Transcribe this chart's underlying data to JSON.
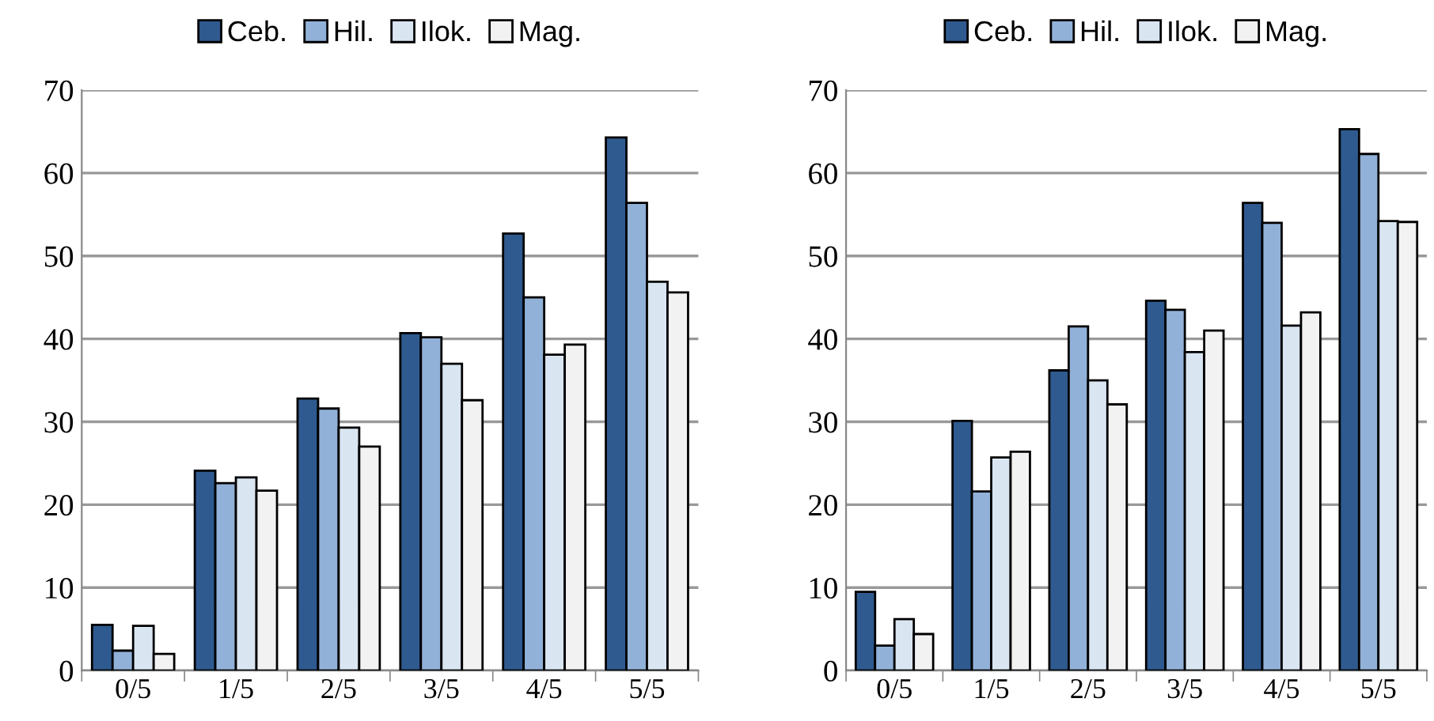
{
  "chart_data": [
    {
      "type": "bar",
      "categories": [
        "0/5",
        "1/5",
        "2/5",
        "3/5",
        "4/5",
        "5/5"
      ],
      "ylim": [
        0,
        70
      ],
      "yticks": [
        0,
        10,
        20,
        30,
        40,
        50,
        60,
        70
      ],
      "grid": "y",
      "legend": "top",
      "series": [
        {
          "name": "Ceb.",
          "color": "#2f5a8f",
          "values": [
            5.5,
            24.1,
            32.8,
            40.7,
            52.7,
            64.3
          ]
        },
        {
          "name": "Hil.",
          "color": "#92b1d8",
          "values": [
            2.4,
            22.6,
            31.6,
            40.2,
            45.0,
            56.4
          ]
        },
        {
          "name": "Ilok.",
          "color": "#dae5f2",
          "values": [
            5.4,
            23.3,
            29.3,
            37.0,
            38.1,
            46.9
          ]
        },
        {
          "name": "Mag.",
          "color": "#f2f2f2",
          "values": [
            2.0,
            21.7,
            27.0,
            32.6,
            39.3,
            45.6
          ]
        }
      ]
    },
    {
      "type": "bar",
      "categories": [
        "0/5",
        "1/5",
        "2/5",
        "3/5",
        "4/5",
        "5/5"
      ],
      "ylim": [
        0,
        70
      ],
      "yticks": [
        0,
        10,
        20,
        30,
        40,
        50,
        60,
        70
      ],
      "grid": "y",
      "legend": "top",
      "series": [
        {
          "name": "Ceb.",
          "color": "#2f5a8f",
          "values": [
            9.5,
            30.1,
            36.2,
            44.6,
            56.4,
            65.3
          ]
        },
        {
          "name": "Hil.",
          "color": "#92b1d8",
          "values": [
            3.0,
            21.6,
            41.5,
            43.5,
            54.0,
            62.3
          ]
        },
        {
          "name": "Ilok.",
          "color": "#dae5f2",
          "values": [
            6.2,
            25.7,
            35.0,
            38.4,
            41.6,
            54.2
          ]
        },
        {
          "name": "Mag.",
          "color": "#f2f2f2",
          "values": [
            4.4,
            26.4,
            32.1,
            41.0,
            43.2,
            54.1
          ]
        }
      ]
    }
  ]
}
